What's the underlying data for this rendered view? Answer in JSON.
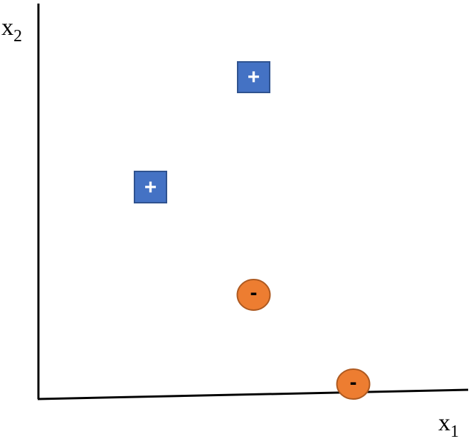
{
  "axes": {
    "x_label": {
      "base": "x",
      "sub": "1"
    },
    "y_label": {
      "base": "x",
      "sub": "2"
    }
  },
  "points": [
    {
      "class": "positive",
      "symbol": "+",
      "shape": "square",
      "fill": "#4472C4",
      "stroke": "#2F528F",
      "text_color": "#ffffff"
    },
    {
      "class": "positive",
      "symbol": "+",
      "shape": "square",
      "fill": "#4472C4",
      "stroke": "#2F528F",
      "text_color": "#ffffff"
    },
    {
      "class": "negative",
      "symbol": "-",
      "shape": "circle",
      "fill": "#ED7D31",
      "stroke": "#AE5A21",
      "text_color": "#000000"
    },
    {
      "class": "negative",
      "symbol": "-",
      "shape": "circle",
      "fill": "#ED7D31",
      "stroke": "#AE5A21",
      "text_color": "#000000"
    }
  ]
}
